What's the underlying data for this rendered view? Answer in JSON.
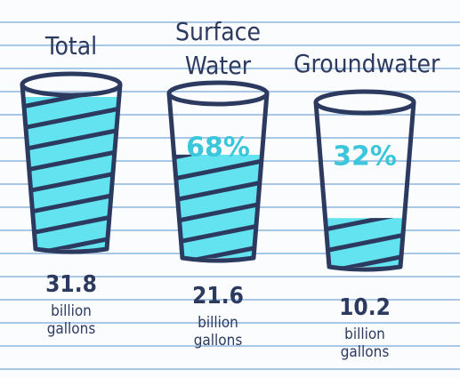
{
  "chart_data": {
    "type": "glass",
    "categories": [
      "Total",
      "Surface Water",
      "Groundwater"
    ],
    "values": [
      31.8,
      21.6,
      10.2
    ],
    "unit": "billion gallons",
    "shares": [
      null,
      68,
      32
    ],
    "share_labels": [
      null,
      "68%",
      "32%"
    ],
    "color": "#62e3ef",
    "outline": "#2c3a60"
  }
}
